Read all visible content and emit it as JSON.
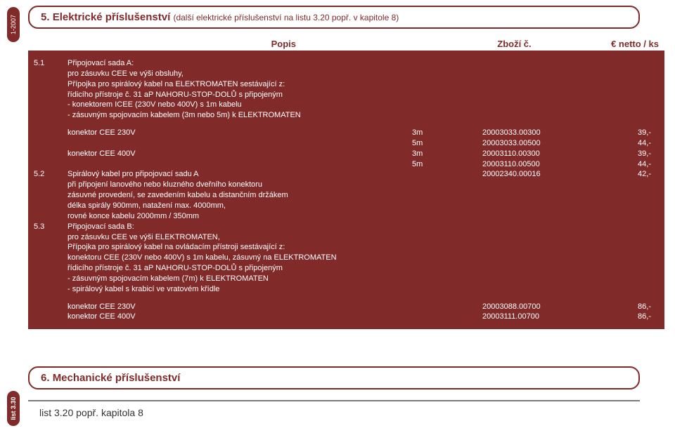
{
  "colors": {
    "brand": "#802a2a",
    "text": "#333333",
    "bg": "#ffffff",
    "gray": "#7a7a7a"
  },
  "rails": {
    "top": "1-2007",
    "bottom": "list 3.30"
  },
  "section5": {
    "num": "5.",
    "title": "Elektrické příslušenství",
    "sub": "(další elektrické příslušenství na listu 3.20 popř. v kapitole 8)"
  },
  "headers": {
    "popis": "Popis",
    "zbozi": "Zboží č.",
    "netto": "€ netto / ks"
  },
  "item51": {
    "num": "5.1",
    "lines": [
      "Připojovací sada A:",
      "pro zásuvku CEE ve výši obsluhy,",
      "Přípojka pro spirálový kabel na ELEKTROMATEN sestávající z:",
      "řídicího přístroje č. 31 aP NAHORU-STOP-DOLŮ s připojeným",
      "- konektorem ICEE (230V nebo 400V) s 1m kabelu",
      "- zásuvným spojovacím kabelem (3m nebo 5m) k ELEKTROMATEN"
    ]
  },
  "table51": [
    {
      "label": "konektor CEE 230V",
      "mid": "3m",
      "code": "20003033.00300",
      "price": "39,-"
    },
    {
      "label": "",
      "mid": "5m",
      "code": "20003033.00500",
      "price": "44,-"
    },
    {
      "label": "konektor CEE 400V",
      "mid": "3m",
      "code": "20003110.00300",
      "price": "39,-"
    },
    {
      "label": "",
      "mid": "5m",
      "code": "20003110.00500",
      "price": "44,-"
    }
  ],
  "item52": {
    "num": "5.2",
    "line1": "Spirálový kabel pro připojovací sadu A",
    "code": "20002340.00016",
    "price": "42,-",
    "lines": [
      "při připojení lanového nebo kluzného dveřního konektoru",
      "zásuvné provedení, se zavedením kabelu a distančním držákem",
      "délka spirály 900mm, natažení max. 4000mm,",
      "rovné konce kabelu 2000mm / 350mm"
    ]
  },
  "item53": {
    "num": "5.3",
    "lines": [
      "Připojovací sada B:",
      "pro zásuvku CEE ve výši ELEKTROMATEN,",
      "Přípojka pro spirálový kabel na ovládacím přístroji sestávající z:",
      "konektoru CEE (230V nebo 400V) s 1m kabelu, zásuvný na ELEKTROMATEN",
      "řídicího přístroje č. 31 aP NAHORU-STOP-DOLŮ s připojeným",
      "- zásuvným spojovacím kabelem (7m) k ELEKTROMATEN",
      "- spirálový kabel s krabicí ve vratovém křídle"
    ]
  },
  "table53": [
    {
      "label": "konektor CEE 230V",
      "code": "20003088.00700",
      "price": "86,-"
    },
    {
      "label": "konektor CEE 400V",
      "code": "20003111.00700",
      "price": "86,-"
    }
  ],
  "section6": {
    "num": "6.",
    "title": "Mechanické příslušenství"
  },
  "footnote": "list 3.20 popř. kapitola 8"
}
